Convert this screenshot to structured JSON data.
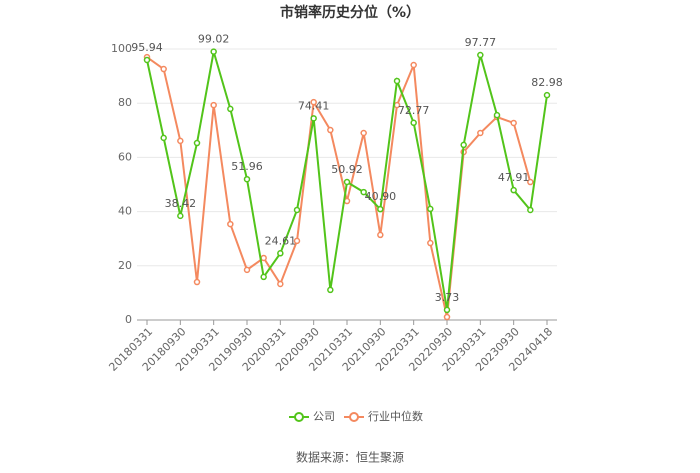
{
  "chart_data": {
    "type": "line",
    "title": "市销率历史分位（%）",
    "source": "数据来源：恒生聚源",
    "categories": [
      "20180331",
      null,
      "20180930",
      null,
      "20190331",
      null,
      "20190930",
      null,
      "20200331",
      null,
      "20200930",
      null,
      "20210331",
      null,
      "20210930",
      null,
      "20220331",
      null,
      "20220930",
      null,
      "20230331",
      null,
      "20230930",
      null,
      "20240418"
    ],
    "series": [
      {
        "name": "公司",
        "color": "#52c41a",
        "values": [
          95.94,
          67.2,
          38.42,
          65.3,
          99.02,
          77.9,
          51.96,
          15.9,
          24.61,
          40.6,
          74.41,
          11.1,
          50.92,
          47.2,
          40.9,
          88.2,
          72.77,
          41.0,
          3.73,
          64.6,
          97.77,
          75.6,
          47.91,
          40.6,
          82.98
        ],
        "value_labels": [
          "95.94",
          null,
          "38.42",
          null,
          "99.02",
          null,
          "51.96",
          null,
          "24.61",
          null,
          "74.41",
          null,
          "50.92",
          null,
          "40.90",
          null,
          "72.77",
          null,
          "3.73",
          null,
          "97.77",
          null,
          "47.91",
          null,
          "82.98"
        ]
      },
      {
        "name": "行业中位数",
        "color": "#f4895f",
        "values": [
          97.0,
          92.6,
          66.1,
          14.0,
          79.3,
          35.4,
          18.5,
          22.9,
          13.3,
          29.2,
          80.4,
          70.1,
          43.9,
          69.0,
          31.4,
          79.3,
          94.1,
          28.4,
          1.1,
          62.0,
          69.0,
          74.9,
          72.7,
          50.9,
          null
        ]
      }
    ],
    "ylim": [
      0,
      100
    ],
    "yticks": [
      0,
      20,
      40,
      60,
      80,
      100
    ],
    "grid": true,
    "legend": "bottom"
  }
}
